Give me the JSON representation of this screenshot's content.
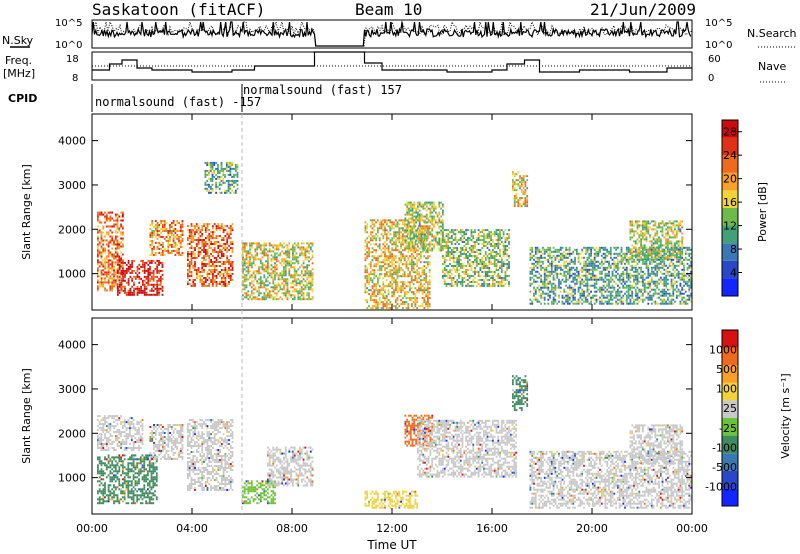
{
  "header": {
    "station": "Saskatoon  (fitACF)",
    "beam": "Beam 10",
    "date": "21/Jun/2009"
  },
  "summary_panels": {
    "noise": {
      "left_label": "N.Sky",
      "right_label": "N.Search",
      "left_ticks": [
        "10^5",
        "10^0"
      ],
      "right_ticks": [
        "10^5",
        "10^0"
      ]
    },
    "freq": {
      "left_label_1": "Freq.",
      "left_label_2": "[MHz]",
      "right_label": "Nave",
      "left_ticks": [
        "18",
        "8"
      ],
      "right_ticks": [
        "60",
        "0"
      ]
    },
    "cpid": {
      "label": "CPID",
      "modes": [
        "normalsound (fast) -157",
        "normalsound (fast) 157"
      ]
    }
  },
  "chart_data": [
    {
      "type": "heatmap",
      "title": "",
      "xlabel": "Time UT",
      "ylabel": "Slant Range [km]",
      "x_ticks": [
        "00:00",
        "04:00",
        "08:00",
        "12:00",
        "16:00",
        "20:00",
        "00:00"
      ],
      "xlim_hours": [
        0,
        24
      ],
      "ylim": [
        180,
        4600
      ],
      "y_ticks": [
        1000,
        2000,
        3000,
        4000
      ],
      "colorbar": {
        "label": "Power [dB]",
        "ticks": [
          4,
          8,
          12,
          16,
          20,
          24,
          28
        ],
        "range": [
          0,
          30
        ],
        "colors": [
          "#1426ff",
          "#2848c8",
          "#3a78b4",
          "#3fa07a",
          "#6cbb4c",
          "#f0d23c",
          "#f7a02a",
          "#f06a1e",
          "#e03018",
          "#cc0c0c"
        ]
      },
      "data_gap_hours": [
        8.9,
        10.9
      ],
      "scatter_regions": [
        {
          "t": [
            0.2,
            1.2
          ],
          "r": [
            600,
            2400
          ],
          "level": 0.75
        },
        {
          "t": [
            1.0,
            2.8
          ],
          "r": [
            500,
            1300
          ],
          "level": 0.95
        },
        {
          "t": [
            2.3,
            3.6
          ],
          "r": [
            1400,
            2200
          ],
          "level": 0.7
        },
        {
          "t": [
            3.8,
            5.6
          ],
          "r": [
            700,
            2100
          ],
          "level": 0.8
        },
        {
          "t": [
            4.5,
            5.8
          ],
          "r": [
            2800,
            3500
          ],
          "level": 0.35
        },
        {
          "t": [
            6.0,
            8.8
          ],
          "r": [
            400,
            1700
          ],
          "level": 0.55
        },
        {
          "t": [
            10.9,
            13.5
          ],
          "r": [
            200,
            2200
          ],
          "level": 0.6
        },
        {
          "t": [
            12.5,
            14.0
          ],
          "r": [
            1500,
            2600
          ],
          "level": 0.5
        },
        {
          "t": [
            14.0,
            16.7
          ],
          "r": [
            700,
            2000
          ],
          "level": 0.45
        },
        {
          "t": [
            16.8,
            17.4
          ],
          "r": [
            2500,
            3300
          ],
          "level": 0.6
        },
        {
          "t": [
            17.5,
            24.0
          ],
          "r": [
            300,
            1600
          ],
          "level": 0.35
        },
        {
          "t": [
            21.5,
            23.6
          ],
          "r": [
            1300,
            2200
          ],
          "level": 0.5
        }
      ]
    },
    {
      "type": "heatmap",
      "title": "",
      "xlabel": "Time UT",
      "ylabel": "Slant Range [km]",
      "x_ticks": [
        "00:00",
        "04:00",
        "08:00",
        "12:00",
        "16:00",
        "20:00",
        "00:00"
      ],
      "xlim_hours": [
        0,
        24
      ],
      "ylim": [
        180,
        4600
      ],
      "y_ticks": [
        1000,
        2000,
        3000,
        4000
      ],
      "colorbar": {
        "label": "Velocity  [m s⁻¹]",
        "ticks": [
          "1000",
          "500",
          "100",
          "25",
          "-25",
          "-100",
          "-500",
          "-1000"
        ],
        "colors": [
          "#1426ff",
          "#2848c8",
          "#3a78b4",
          "#3f8a5e",
          "#6cc23a",
          "#c8c8c8",
          "#f0d23c",
          "#f7a02a",
          "#f06a1e",
          "#d61212"
        ]
      },
      "data_gap_hours": [
        8.9,
        10.9
      ],
      "scatter_regions": [
        {
          "t": [
            0.2,
            2.6
          ],
          "r": [
            400,
            1500
          ],
          "color": "#3f8a5e"
        },
        {
          "t": [
            0.2,
            2.0
          ],
          "r": [
            1600,
            2400
          ],
          "color": "#c8c8c8"
        },
        {
          "t": [
            2.3,
            3.6
          ],
          "r": [
            1400,
            2200
          ],
          "color": "#c8c8c8"
        },
        {
          "t": [
            3.8,
            5.6
          ],
          "r": [
            700,
            2300
          ],
          "color": "#c8c8c8"
        },
        {
          "t": [
            6.0,
            7.3
          ],
          "r": [
            400,
            900
          ],
          "color": "#6cc23a"
        },
        {
          "t": [
            7.0,
            8.8
          ],
          "r": [
            800,
            1700
          ],
          "color": "#c8c8c8"
        },
        {
          "t": [
            10.9,
            13.0
          ],
          "r": [
            300,
            700
          ],
          "color": "#f0d23c"
        },
        {
          "t": [
            12.5,
            13.6
          ],
          "r": [
            1700,
            2400
          ],
          "color": "#f06a1e"
        },
        {
          "t": [
            13.0,
            17.0
          ],
          "r": [
            1000,
            2300
          ],
          "color": "#c8c8c8"
        },
        {
          "t": [
            16.8,
            17.4
          ],
          "r": [
            2500,
            3300
          ],
          "color": "#3f8a5e"
        },
        {
          "t": [
            17.5,
            24.0
          ],
          "r": [
            300,
            1600
          ],
          "color": "#c8c8c8"
        },
        {
          "t": [
            21.5,
            23.6
          ],
          "r": [
            1300,
            2200
          ],
          "color": "#c8c8c8"
        }
      ]
    }
  ]
}
